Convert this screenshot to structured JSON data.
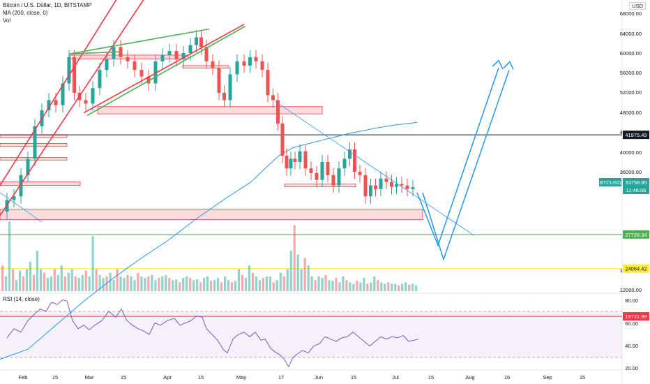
{
  "header": {
    "title": "Bitcoin / U.S. Dollar, 1D, BITSTAMP",
    "ma_label": "MA (200, close, 0)",
    "vol_label": "Vol",
    "rsi_label": "RSI (14, close)",
    "currency": "USD"
  },
  "colors": {
    "bull": "#26a69a",
    "bear": "#ef5350",
    "ma": "#2196f3",
    "rsi": "#7e57c2",
    "channel": "#f23645",
    "wedge": "#4caf50",
    "projection": "#2196f3"
  },
  "chart_data": {
    "type": "candlestick",
    "symbol": "BTCUSD",
    "exchange": "BITSTAMP",
    "interval": "1D",
    "log_scale": true,
    "y_ticks": [
      "68000.00",
      "64000.00",
      "60000.00",
      "56000.00",
      "52000.00",
      "48000.00",
      "44000.00",
      "40000.00",
      "36000.00",
      "16000.00",
      "12000.00"
    ],
    "x_ticks": [
      "Feb",
      "15",
      "Mar",
      "15",
      "Apr",
      "15",
      "May",
      "17",
      "Jun",
      "15",
      "Jul",
      "15",
      "Aug",
      "16",
      "Sep",
      "15"
    ],
    "rsi_ticks": [
      "80.00",
      "60.00",
      "40.00",
      "20.00"
    ],
    "price_labels": [
      {
        "id": "black_line",
        "text": "41975.49"
      },
      {
        "id": "btc_symbol",
        "text": "BTCUSD"
      },
      {
        "id": "btc_price",
        "text": "33758.95"
      },
      {
        "id": "countdown",
        "text": "11:46:06"
      },
      {
        "id": "green_line",
        "text": "27728.34"
      },
      {
        "id": "yellow_line",
        "text": "24064.42"
      },
      {
        "id": "red_line",
        "text": "19721.99"
      }
    ],
    "horizontal_lines": [
      {
        "value": 41975.49,
        "color": "#131722"
      },
      {
        "value": 27728.34,
        "color": "#4caf50"
      },
      {
        "value": 24064.42,
        "color": "#ffeb3b"
      },
      {
        "value": 19721.99,
        "color": "#f23645"
      }
    ],
    "ma200": [
      [
        0,
        16500
      ],
      [
        40,
        17200
      ],
      [
        80,
        19000
      ],
      [
        120,
        21000
      ],
      [
        160,
        23000
      ],
      [
        200,
        25000
      ],
      [
        240,
        27000
      ],
      [
        280,
        29500
      ],
      [
        320,
        32000
      ],
      [
        360,
        34500
      ],
      [
        380,
        36500
      ],
      [
        400,
        38500
      ],
      [
        420,
        39800
      ],
      [
        460,
        41000
      ],
      [
        500,
        42200
      ],
      [
        540,
        43200
      ],
      [
        570,
        43800
      ],
      [
        598,
        44200
      ]
    ],
    "price_path": [
      [
        5,
        30500
      ],
      [
        15,
        32000
      ],
      [
        25,
        32500
      ],
      [
        35,
        35500
      ],
      [
        45,
        38000
      ],
      [
        55,
        43500
      ],
      [
        65,
        46500
      ],
      [
        75,
        48500
      ],
      [
        85,
        47500
      ],
      [
        95,
        52000
      ],
      [
        103,
        58000
      ],
      [
        110,
        50000
      ],
      [
        118,
        48500
      ],
      [
        128,
        47800
      ],
      [
        138,
        51000
      ],
      [
        148,
        55000
      ],
      [
        158,
        57500
      ],
      [
        168,
        60500
      ],
      [
        178,
        58000
      ],
      [
        188,
        57000
      ],
      [
        198,
        55000
      ],
      [
        208,
        53500
      ],
      [
        218,
        52000
      ],
      [
        228,
        57000
      ],
      [
        238,
        58500
      ],
      [
        248,
        59500
      ],
      [
        258,
        57500
      ],
      [
        268,
        59000
      ],
      [
        278,
        61000
      ],
      [
        285,
        63000
      ],
      [
        292,
        60500
      ],
      [
        300,
        57000
      ],
      [
        310,
        55500
      ],
      [
        318,
        50000
      ],
      [
        325,
        48500
      ],
      [
        335,
        54000
      ],
      [
        345,
        57000
      ],
      [
        355,
        56000
      ],
      [
        362,
        58000
      ],
      [
        372,
        57000
      ],
      [
        380,
        55000
      ],
      [
        388,
        49500
      ],
      [
        395,
        48500
      ],
      [
        402,
        44000
      ],
      [
        408,
        38500
      ],
      [
        414,
        36500
      ],
      [
        420,
        38000
      ],
      [
        426,
        37500
      ],
      [
        434,
        39200
      ],
      [
        442,
        36500
      ],
      [
        450,
        35800
      ],
      [
        458,
        34800
      ],
      [
        466,
        37500
      ],
      [
        474,
        35500
      ],
      [
        482,
        34000
      ],
      [
        490,
        36500
      ],
      [
        498,
        38000
      ],
      [
        505,
        39500
      ],
      [
        512,
        36000
      ],
      [
        520,
        35500
      ],
      [
        528,
        32500
      ],
      [
        535,
        34000
      ],
      [
        542,
        33500
      ],
      [
        550,
        35000
      ],
      [
        558,
        34500
      ],
      [
        565,
        33800
      ],
      [
        572,
        34200
      ],
      [
        580,
        34000
      ],
      [
        588,
        33500
      ],
      [
        596,
        33759
      ]
    ],
    "volume": [
      0.35,
      0.2,
      0.95,
      0.3,
      0.15,
      0.28,
      0.2,
      0.3,
      0.4,
      0.22,
      0.55,
      0.3,
      0.25,
      0.18,
      0.2,
      0.3,
      0.22,
      0.35,
      0.2,
      0.25,
      0.3,
      0.2,
      0.18,
      0.22,
      0.28,
      0.2,
      0.75,
      0.3,
      0.22,
      0.18,
      0.2,
      0.25,
      0.15,
      0.3,
      0.2,
      0.18,
      0.22,
      0.2,
      0.15,
      0.25,
      0.2,
      0.18,
      0.2,
      0.22,
      0.15,
      0.18,
      0.2,
      0.22,
      0.18,
      0.15,
      0.16,
      0.12,
      0.18,
      0.2,
      0.18,
      0.15,
      0.16,
      0.12,
      0.18,
      0.2,
      0.14,
      0.15,
      0.18,
      0.12,
      0.2,
      0.15,
      0.12,
      0.14,
      0.3,
      0.22,
      0.18,
      0.35,
      0.25,
      0.2,
      0.15,
      0.18,
      0.2,
      0.2,
      0.12,
      0.15,
      0.25,
      0.2,
      0.3,
      0.55,
      0.9,
      0.5,
      0.3,
      0.45,
      0.35,
      0.2,
      0.15,
      0.2,
      0.18,
      0.22,
      0.15,
      0.14,
      0.18,
      0.12,
      0.2,
      0.15,
      0.12,
      0.1,
      0.14,
      0.12,
      0.18,
      0.1,
      0.12,
      0.2,
      0.15,
      0.12,
      0.1,
      0.12,
      0.1,
      0.1,
      0.08,
      0.1,
      0.12,
      0.09,
      0.1,
      0.08
    ],
    "rsi": [
      [
        10,
        47
      ],
      [
        20,
        55
      ],
      [
        30,
        52
      ],
      [
        40,
        62
      ],
      [
        50,
        68
      ],
      [
        58,
        72
      ],
      [
        66,
        70
      ],
      [
        74,
        78
      ],
      [
        82,
        76
      ],
      [
        90,
        80
      ],
      [
        96,
        79
      ],
      [
        104,
        62
      ],
      [
        112,
        55
      ],
      [
        120,
        58
      ],
      [
        128,
        54
      ],
      [
        136,
        58
      ],
      [
        146,
        62
      ],
      [
        156,
        70
      ],
      [
        166,
        65
      ],
      [
        174,
        72
      ],
      [
        182,
        62
      ],
      [
        190,
        58
      ],
      [
        198,
        55
      ],
      [
        206,
        53
      ],
      [
        214,
        50
      ],
      [
        222,
        60
      ],
      [
        230,
        58
      ],
      [
        240,
        62
      ],
      [
        250,
        64
      ],
      [
        258,
        58
      ],
      [
        266,
        60
      ],
      [
        274,
        62
      ],
      [
        282,
        66
      ],
      [
        290,
        65
      ],
      [
        296,
        55
      ],
      [
        304,
        50
      ],
      [
        312,
        45
      ],
      [
        320,
        37
      ],
      [
        326,
        34
      ],
      [
        334,
        46
      ],
      [
        342,
        50
      ],
      [
        350,
        52
      ],
      [
        358,
        48
      ],
      [
        366,
        52
      ],
      [
        374,
        45
      ],
      [
        380,
        46
      ],
      [
        388,
        38
      ],
      [
        394,
        35
      ],
      [
        402,
        32
      ],
      [
        408,
        28
      ],
      [
        414,
        22
      ],
      [
        420,
        30
      ],
      [
        426,
        33
      ],
      [
        434,
        36
      ],
      [
        442,
        34
      ],
      [
        450,
        40
      ],
      [
        458,
        42
      ],
      [
        466,
        48
      ],
      [
        474,
        46
      ],
      [
        482,
        44
      ],
      [
        490,
        47
      ],
      [
        498,
        48
      ],
      [
        506,
        52
      ],
      [
        514,
        48
      ],
      [
        522,
        44
      ],
      [
        530,
        40
      ],
      [
        538,
        44
      ],
      [
        546,
        48
      ],
      [
        554,
        46
      ],
      [
        562,
        48
      ],
      [
        570,
        47
      ],
      [
        578,
        49
      ],
      [
        586,
        44
      ],
      [
        594,
        45
      ],
      [
        600,
        46
      ]
    ]
  }
}
